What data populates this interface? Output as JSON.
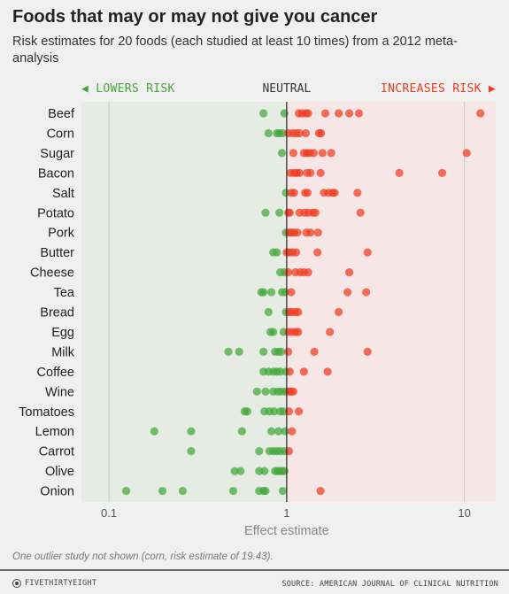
{
  "title": "Foods that may or may not give you cancer",
  "subtitle": "Risk estimates for 20 foods (each studied at least 10 times) from a 2012 meta-analysis",
  "footnote": "One outlier study not shown (corn, risk estimate of 19.43).",
  "brand": "FIVETHIRTYEIGHT",
  "source": "SOURCE: AMERICAN JOURNAL OF CLINICAL NUTRITION",
  "colors": {
    "lowers": "#43a83a",
    "increases": "#ef3b21",
    "lowers_bg": "#e6ece4",
    "increases_bg": "#f6e6e5",
    "neutral_line": "#333333",
    "grid": "#c9c9c9"
  },
  "chart_data": {
    "type": "scatter",
    "x_scale": "log",
    "xlim": [
      0.07,
      15
    ],
    "xlabel": "Effect estimate",
    "x_ticks": [
      {
        "value": 0.1,
        "label": "0.1"
      },
      {
        "value": 1,
        "label": "1"
      },
      {
        "value": 10,
        "label": "10"
      }
    ],
    "header": {
      "lowers": "LOWERS RISK",
      "neutral": "NEUTRAL",
      "increases": "INCREASES RISK"
    },
    "grid": true,
    "categories": [
      "Beef",
      "Corn",
      "Sugar",
      "Bacon",
      "Salt",
      "Potato",
      "Pork",
      "Butter",
      "Cheese",
      "Tea",
      "Bread",
      "Egg",
      "Milk",
      "Coffee",
      "Wine",
      "Tomatoes",
      "Lemon",
      "Carrot",
      "Olive",
      "Onion"
    ],
    "series": [
      {
        "category": "Beef",
        "values": [
          0.74,
          0.97,
          1.17,
          1.22,
          1.28,
          1.32,
          1.65,
          1.96,
          2.25,
          2.55,
          12.3
        ]
      },
      {
        "category": "Corn",
        "values": [
          0.79,
          0.88,
          0.91,
          0.95,
          1.02,
          1.08,
          1.13,
          1.18,
          1.28,
          1.52,
          1.56
        ]
      },
      {
        "category": "Sugar",
        "values": [
          0.94,
          1.09,
          1.25,
          1.3,
          1.35,
          1.42,
          1.59,
          1.78,
          10.3
        ]
      },
      {
        "category": "Bacon",
        "values": [
          1.05,
          1.1,
          1.14,
          1.18,
          1.3,
          1.36,
          1.55,
          4.3,
          7.5
        ]
      },
      {
        "category": "Salt",
        "values": [
          0.99,
          1.06,
          1.1,
          1.27,
          1.31,
          1.62,
          1.72,
          1.81,
          1.86,
          2.5
        ]
      },
      {
        "category": "Potato",
        "values": [
          0.76,
          0.91,
          1.02,
          1.04,
          1.18,
          1.26,
          1.32,
          1.4,
          1.45,
          2.6
        ]
      },
      {
        "category": "Pork",
        "values": [
          0.99,
          1.03,
          1.06,
          1.1,
          1.15,
          1.29,
          1.36,
          1.5
        ]
      },
      {
        "category": "Butter",
        "values": [
          0.84,
          0.88,
          1.0,
          1.03,
          1.08,
          1.13,
          1.49,
          2.85
        ]
      },
      {
        "category": "Cheese",
        "values": [
          0.92,
          0.97,
          1.02,
          1.12,
          1.19,
          1.25,
          1.32,
          2.25
        ]
      },
      {
        "category": "Tea",
        "values": [
          0.72,
          0.74,
          0.82,
          0.94,
          0.98,
          1.06,
          2.2,
          2.8
        ]
      },
      {
        "category": "Bread",
        "values": [
          0.79,
          0.99,
          1.03,
          1.07,
          1.12,
          1.16,
          1.96
        ]
      },
      {
        "category": "Egg",
        "values": [
          0.81,
          0.84,
          0.96,
          1.02,
          1.07,
          1.12,
          1.16,
          1.75
        ]
      },
      {
        "category": "Milk",
        "values": [
          0.47,
          0.54,
          0.74,
          0.86,
          0.9,
          0.93,
          1.02,
          1.43,
          2.85
        ]
      },
      {
        "category": "Coffee",
        "values": [
          0.74,
          0.79,
          0.84,
          0.88,
          0.92,
          0.99,
          1.04,
          1.25,
          1.7
        ]
      },
      {
        "category": "Wine",
        "values": [
          0.68,
          0.76,
          0.84,
          0.89,
          0.93,
          0.98,
          1.03,
          1.06,
          1.09
        ]
      },
      {
        "category": "Tomatoes",
        "values": [
          0.58,
          0.6,
          0.75,
          0.8,
          0.85,
          0.92,
          0.96,
          1.03,
          1.17
        ]
      },
      {
        "category": "Lemon",
        "values": [
          0.18,
          0.29,
          0.56,
          0.82,
          0.9,
          0.98,
          1.07
        ]
      },
      {
        "category": "Carrot",
        "values": [
          0.29,
          0.7,
          0.8,
          0.84,
          0.88,
          0.92,
          0.97,
          1.03
        ]
      },
      {
        "category": "Olive",
        "values": [
          0.51,
          0.55,
          0.7,
          0.75,
          0.86,
          0.89,
          0.91,
          0.94,
          0.97
        ]
      },
      {
        "category": "Onion",
        "values": [
          0.125,
          0.2,
          0.26,
          0.5,
          0.7,
          0.74,
          0.76,
          0.95,
          1.55
        ]
      }
    ]
  }
}
